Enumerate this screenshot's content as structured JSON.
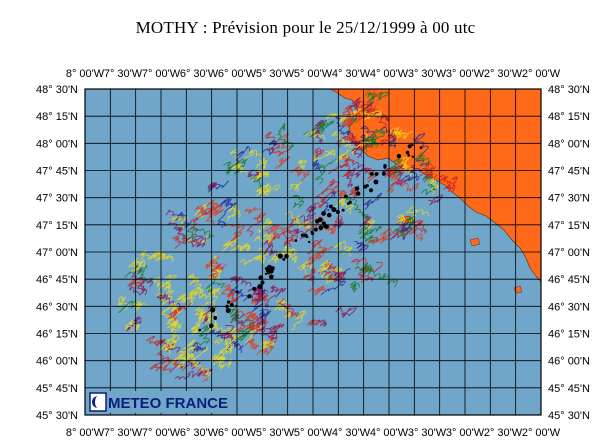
{
  "title": "MOTHY : Prévision pour le 25/12/1999 à 00 utc",
  "logo": {
    "text": "METEO FRANCE"
  },
  "axes": {
    "top_labels": [
      "8° 00'W",
      "7° 30'W",
      "7° 00'W",
      "6° 30'W",
      "6° 00'W",
      "5° 30'W",
      "5° 00'W",
      "4° 30'W",
      "4° 00'W",
      "3° 30'W",
      "3° 00'W",
      "2° 30'W",
      "2° 00'W"
    ],
    "bottom_labels": [
      "8° 00'W",
      "7° 30'W",
      "7° 00'W",
      "6° 30'W",
      "6° 00'W",
      "5° 30'W",
      "5° 00'W",
      "4° 30'W",
      "4° 00'W",
      "3° 30'W",
      "3° 00'W",
      "2° 30'W",
      "2° 00'W"
    ],
    "left_labels": [
      "48° 30'N",
      "48° 15'N",
      "48° 00'N",
      "47° 45'N",
      "47° 30'N",
      "47° 15'N",
      "47° 00'N",
      "46° 45'N",
      "46° 30'N",
      "46° 15'N",
      "46° 00'N",
      "45° 45'N",
      "45° 30'N"
    ],
    "right_labels": [
      "48° 30'N",
      "48° 15'N",
      "48° 00'N",
      "47° 45'N",
      "47° 30'N",
      "47° 15'N",
      "47° 00'N",
      "46° 45'N",
      "46° 30'N",
      "46° 15'N",
      "46° 00'N",
      "45° 45'N",
      "45° 30'N"
    ]
  },
  "colors": {
    "sea": "#6fa6c9",
    "land": "#ff6a1a",
    "grid": "#000000",
    "spill": [
      "#cc2222",
      "#e23a1a",
      "#2a2a9a",
      "#1a7a2a",
      "#e8d820",
      "#8a1a5a"
    ]
  }
}
